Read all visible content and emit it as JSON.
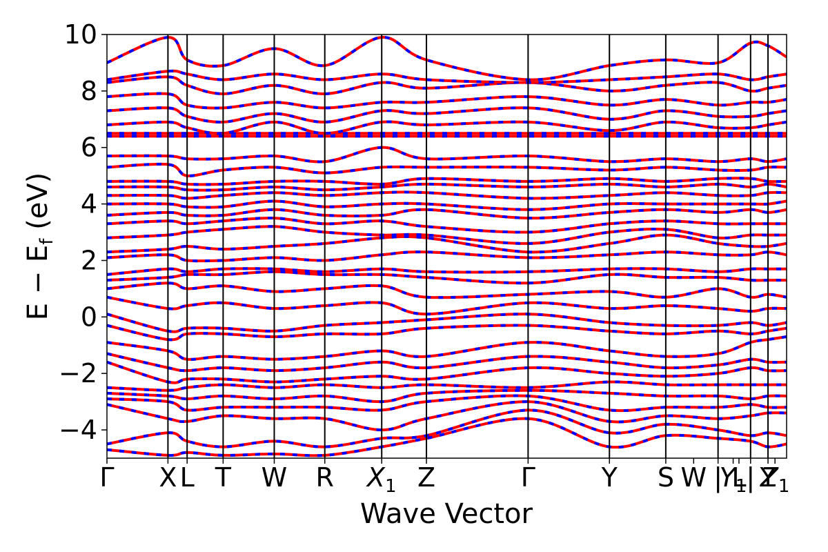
{
  "chart_data": {
    "type": "line",
    "xlabel": "Wave Vector",
    "ylabel": "E − E",
    "ylabel_sub": "f",
    "ylabel_unit": " (eV)",
    "ylim": [
      -5,
      10
    ],
    "yticks": [
      -4,
      -2,
      0,
      2,
      4,
      6,
      8,
      10
    ],
    "ytick_labels": [
      "−4",
      "−2",
      "0",
      "2",
      "4",
      "6",
      "8",
      "10"
    ],
    "xlim": [
      0,
      11.7
    ],
    "kpoints": [
      {
        "label": "Γ",
        "sub": "",
        "x": 0.0
      },
      {
        "label": "X",
        "sub": "",
        "x": 1.05
      },
      {
        "label": "L",
        "sub": "",
        "x": 1.38
      },
      {
        "label": "T",
        "sub": "",
        "x": 2.0
      },
      {
        "label": "W",
        "sub": "",
        "x": 2.88
      },
      {
        "label": "R",
        "sub": "",
        "x": 3.75
      },
      {
        "label": "X",
        "sub": "1",
        "x": 4.73
      },
      {
        "label": "Z",
        "sub": "",
        "x": 5.5
      },
      {
        "label": "Γ",
        "sub": "",
        "x": 7.25
      },
      {
        "label": "Y",
        "sub": "",
        "x": 8.65
      },
      {
        "label": "S",
        "sub": "",
        "x": 9.62
      },
      {
        "label": "W",
        "sub": "",
        "x": 10.1
      },
      {
        "label": "|",
        "sub": "",
        "x": 10.52
      },
      {
        "label": "Y",
        "sub": "1",
        "x": 10.78
      },
      {
        "label": "L",
        "sub": "",
        "x": 10.88
      },
      {
        "label": "|",
        "sub": "",
        "x": 11.08
      },
      {
        "label": "Y",
        "sub": "",
        "x": 11.38
      },
      {
        "label": "Z",
        "sub": "1",
        "x": 11.5
      }
    ],
    "vlines": [
      1.05,
      1.38,
      2.0,
      2.88,
      3.75,
      4.73,
      5.5,
      7.25,
      8.65,
      9.62,
      10.52,
      11.08,
      11.38
    ],
    "bands": {
      "k": [
        0.0,
        1.05,
        1.38,
        2.0,
        2.88,
        3.75,
        4.73,
        5.5,
        7.25,
        8.65,
        9.62,
        10.52,
        11.08,
        11.38,
        11.7
      ],
      "energies": [
        [
          -4.7,
          -4.9,
          -4.8,
          -4.9,
          -4.85,
          -4.9,
          -4.6,
          -4.3,
          -3.6,
          -4.6,
          -4.2,
          -4.3,
          -4.4,
          -4.6,
          -4.5
        ],
        [
          -4.5,
          -4.1,
          -4.4,
          -4.6,
          -4.4,
          -4.6,
          -4.3,
          -4.2,
          -3.3,
          -4.1,
          -3.8,
          -4.0,
          -4.2,
          -4.1,
          -4.2
        ],
        [
          -3.1,
          -3.6,
          -3.7,
          -3.5,
          -3.6,
          -3.6,
          -4.0,
          -3.6,
          -3.0,
          -3.7,
          -3.5,
          -3.6,
          -3.5,
          -3.4,
          -3.4
        ],
        [
          -2.9,
          -3.0,
          -3.3,
          -3.2,
          -3.2,
          -3.2,
          -3.3,
          -3.0,
          -2.8,
          -3.3,
          -3.2,
          -3.2,
          -3.1,
          -3.2,
          -3.2
        ],
        [
          -2.7,
          -2.8,
          -2.9,
          -2.8,
          -2.9,
          -2.8,
          -3.0,
          -2.7,
          -2.6,
          -2.7,
          -2.8,
          -2.8,
          -2.9,
          -2.8,
          -2.8
        ],
        [
          -2.5,
          -2.6,
          -2.5,
          -2.4,
          -2.5,
          -2.4,
          -2.5,
          -2.4,
          -2.5,
          -2.3,
          -2.4,
          -2.4,
          -2.4,
          -2.4,
          -2.4
        ],
        [
          -1.6,
          -2.3,
          -2.2,
          -2.2,
          -2.3,
          -2.2,
          -2.1,
          -2.2,
          -1.8,
          -2.0,
          -2.1,
          -2.0,
          -1.8,
          -1.9,
          -1.9
        ],
        [
          -1.3,
          -1.8,
          -1.9,
          -1.8,
          -1.9,
          -1.8,
          -1.6,
          -1.8,
          -1.4,
          -1.6,
          -1.8,
          -1.7,
          -1.5,
          -1.6,
          -1.6
        ],
        [
          -0.9,
          -1.2,
          -1.5,
          -1.4,
          -1.5,
          -1.4,
          -1.2,
          -1.4,
          -0.9,
          -1.2,
          -1.4,
          -1.3,
          -0.9,
          -0.8,
          -0.7
        ],
        [
          -0.3,
          -0.8,
          -0.6,
          -0.6,
          -0.7,
          -0.6,
          -0.6,
          -0.4,
          -0.3,
          -0.5,
          -0.6,
          -0.5,
          -0.6,
          -0.5,
          -0.4
        ],
        [
          0.1,
          -0.5,
          -0.4,
          -0.4,
          -0.5,
          -0.3,
          -0.2,
          -0.1,
          0.1,
          -0.2,
          -0.3,
          -0.3,
          -0.2,
          -0.3,
          -0.2
        ],
        [
          0.7,
          0.3,
          0.4,
          0.5,
          0.3,
          0.4,
          0.5,
          0.1,
          0.5,
          0.3,
          0.4,
          0.3,
          0.2,
          0.3,
          0.3
        ],
        [
          1.0,
          1.2,
          1.0,
          1.1,
          0.9,
          1.0,
          1.1,
          0.7,
          0.8,
          0.9,
          0.7,
          1.0,
          0.7,
          0.8,
          0.7
        ],
        [
          1.3,
          1.4,
          1.5,
          1.5,
          1.6,
          1.5,
          1.5,
          1.4,
          1.2,
          1.5,
          1.4,
          1.4,
          1.3,
          1.3,
          1.3
        ],
        [
          1.5,
          1.7,
          1.6,
          1.7,
          1.7,
          1.6,
          1.7,
          1.6,
          1.6,
          1.7,
          1.7,
          1.6,
          1.7,
          1.7,
          1.7
        ],
        [
          2.1,
          2.2,
          2.0,
          2.0,
          2.1,
          2.0,
          2.2,
          2.3,
          2.1,
          2.2,
          2.3,
          2.2,
          2.2,
          2.3,
          2.2
        ],
        [
          2.3,
          2.4,
          2.5,
          2.4,
          2.5,
          2.6,
          2.8,
          2.8,
          2.3,
          2.6,
          2.9,
          2.6,
          2.5,
          2.5,
          2.6
        ],
        [
          2.8,
          2.9,
          3.0,
          3.1,
          3.2,
          3.0,
          2.9,
          2.9,
          2.6,
          3.0,
          3.1,
          2.8,
          2.9,
          2.9,
          2.9
        ],
        [
          3.3,
          3.4,
          3.3,
          3.4,
          3.5,
          3.3,
          3.4,
          3.2,
          3.0,
          3.3,
          3.4,
          3.3,
          3.3,
          3.3,
          3.3
        ],
        [
          3.6,
          3.7,
          3.6,
          3.6,
          3.8,
          3.6,
          3.6,
          3.8,
          3.5,
          3.7,
          3.8,
          3.7,
          3.8,
          3.7,
          3.8
        ],
        [
          4.0,
          4.0,
          3.9,
          3.9,
          4.1,
          3.9,
          4.0,
          4.0,
          3.8,
          4.0,
          4.0,
          4.0,
          4.0,
          4.0,
          4.1
        ],
        [
          4.3,
          4.3,
          4.2,
          4.3,
          4.4,
          4.3,
          4.4,
          4.4,
          4.2,
          4.3,
          4.4,
          4.3,
          4.3,
          4.4,
          4.4
        ],
        [
          4.6,
          4.6,
          4.5,
          4.5,
          4.6,
          4.5,
          4.6,
          4.7,
          4.6,
          4.7,
          4.6,
          4.7,
          4.6,
          4.7,
          4.6
        ],
        [
          4.8,
          4.8,
          4.7,
          4.7,
          4.8,
          4.8,
          4.7,
          4.9,
          4.8,
          4.9,
          4.8,
          4.9,
          4.9,
          4.8,
          4.8
        ],
        [
          5.3,
          5.4,
          5.0,
          5.2,
          5.3,
          5.1,
          5.3,
          5.3,
          5.3,
          5.2,
          5.3,
          5.2,
          5.2,
          5.3,
          5.3
        ],
        [
          5.7,
          5.7,
          5.6,
          5.6,
          5.7,
          5.5,
          6.0,
          5.6,
          5.7,
          5.5,
          5.6,
          5.5,
          5.6,
          5.5,
          5.6
        ],
        [
          6.4,
          6.4,
          6.4,
          6.4,
          6.4,
          6.4,
          6.4,
          6.4,
          6.4,
          6.4,
          6.4,
          6.4,
          6.4,
          6.4,
          6.4
        ],
        [
          6.5,
          6.5,
          6.5,
          6.5,
          6.5,
          6.5,
          6.5,
          6.5,
          6.5,
          6.5,
          6.5,
          6.5,
          6.5,
          6.5,
          6.5
        ],
        [
          6.8,
          6.9,
          6.7,
          6.5,
          6.9,
          6.5,
          6.9,
          6.8,
          6.9,
          6.6,
          6.9,
          6.7,
          6.7,
          6.8,
          6.9
        ],
        [
          7.3,
          7.4,
          7.1,
          6.9,
          7.2,
          6.9,
          7.3,
          7.2,
          7.4,
          7.0,
          7.3,
          7.1,
          7.1,
          7.2,
          7.3
        ],
        [
          7.8,
          7.9,
          7.5,
          7.4,
          7.6,
          7.4,
          7.6,
          7.6,
          7.8,
          7.5,
          7.7,
          7.5,
          7.6,
          7.6,
          7.7
        ],
        [
          8.3,
          8.5,
          8.2,
          7.9,
          8.2,
          7.9,
          8.3,
          8.1,
          8.3,
          8.0,
          8.2,
          8.3,
          8.0,
          8.1,
          8.2
        ],
        [
          8.4,
          8.7,
          8.6,
          8.4,
          8.6,
          8.4,
          8.6,
          8.4,
          8.3,
          8.4,
          8.5,
          8.6,
          8.4,
          8.5,
          8.6
        ],
        [
          9.0,
          9.9,
          9.1,
          8.9,
          9.5,
          8.9,
          9.9,
          9.1,
          8.4,
          8.9,
          9.1,
          9.0,
          9.7,
          9.6,
          9.2
        ]
      ]
    }
  }
}
